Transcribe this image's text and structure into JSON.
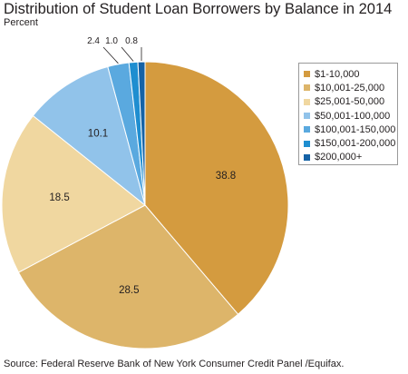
{
  "chart_data": {
    "type": "pie",
    "title": "Distribution of Student Loan Borrowers by Balance in 2014",
    "subtitle": "Percent",
    "source": "Source: Federal Reserve Bank of New York Consumer Credit Panel /Equifax.",
    "legend_position": "right",
    "categories": [
      "$1-10,000",
      "$10,001-25,000",
      "$25,001-50,000",
      "$50,001-100,000",
      "$100,001-150,000",
      "$150,001-200,000",
      "$200,000+"
    ],
    "values": [
      38.8,
      28.5,
      18.5,
      10.1,
      2.4,
      1.0,
      0.8
    ],
    "value_labels": [
      "38.8",
      "28.5",
      "18.5",
      "10.1",
      "2.4",
      "1.0",
      "0.8"
    ],
    "colors": [
      "#d49b3f",
      "#ddb56a",
      "#f0d7a0",
      "#91c3ea",
      "#5aa9df",
      "#1f8ed0",
      "#1562a6"
    ]
  }
}
